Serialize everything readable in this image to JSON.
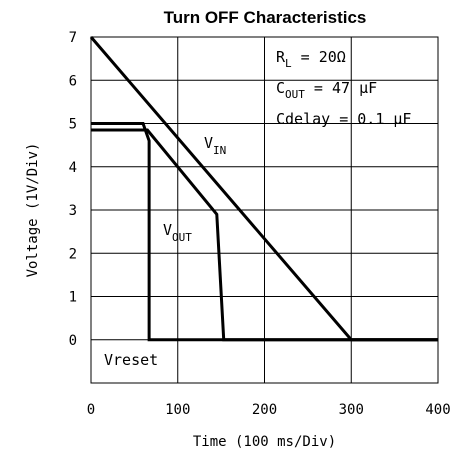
{
  "chart_data": {
    "type": "line",
    "title": "Turn OFF Characteristics",
    "xlabel": "Time (100 ms/Div)",
    "ylabel": "Voltage (1V/Div)",
    "xlim": [
      0,
      400
    ],
    "ylim": [
      -1,
      7
    ],
    "xticks": [
      "0",
      "100",
      "200",
      "300",
      "400"
    ],
    "yticks": [
      "0",
      "1",
      "2",
      "3",
      "4",
      "5",
      "6",
      "7"
    ],
    "grid": true,
    "series": [
      {
        "name": "V_IN",
        "x": [
          0,
          300,
          400
        ],
        "y": [
          7,
          0,
          0
        ]
      },
      {
        "name": "V_OUT",
        "x": [
          0,
          65,
          145,
          153,
          400
        ],
        "y": [
          4.85,
          4.85,
          2.9,
          0,
          0
        ]
      },
      {
        "name": "Vreset",
        "x": [
          0,
          60,
          67,
          67,
          400
        ],
        "y": [
          5.0,
          5.0,
          4.6,
          0,
          0
        ]
      }
    ],
    "labels": {
      "vin_main": "V",
      "vin_sub": "IN",
      "vout_main": "V",
      "vout_sub": "OUT",
      "vreset": "Vreset"
    },
    "annotations": {
      "rl_main": "R",
      "rl_sub": "L",
      "rl_value": " = 20Ω",
      "cout_main": "C",
      "cout_sub": "OUT",
      "cout_value": " = 47 μF",
      "cdelay": "Cdelay = 0.1 μF"
    }
  }
}
